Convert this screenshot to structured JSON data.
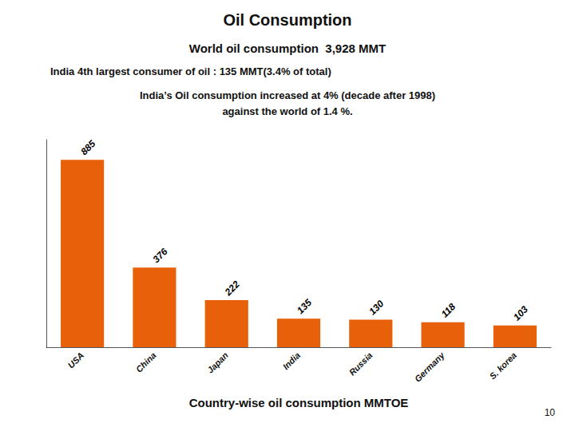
{
  "chart_data": {
    "type": "bar",
    "title": "Oil Consumption",
    "subtitle": "World oil consumption  3,928 MMT",
    "annotations": [
      "India 4th largest consumer of oil : 135 MMT(3.4% of total)",
      "India’s Oil consumption increased at 4% (decade after 1998)",
      "against the world of 1.4 %.",
      "10"
    ],
    "xlabel": "Country-wise oil consumption MMTOE",
    "categories": [
      "USA",
      "China",
      "Japan",
      "India",
      "Russia",
      "Germany",
      "S. korea"
    ],
    "values": [
      885,
      376,
      222,
      135,
      130,
      118,
      103
    ],
    "color": "#E8600A",
    "ylim": [
      0,
      980
    ],
    "tick_labels": "x",
    "grid": false,
    "data_labels": true
  }
}
